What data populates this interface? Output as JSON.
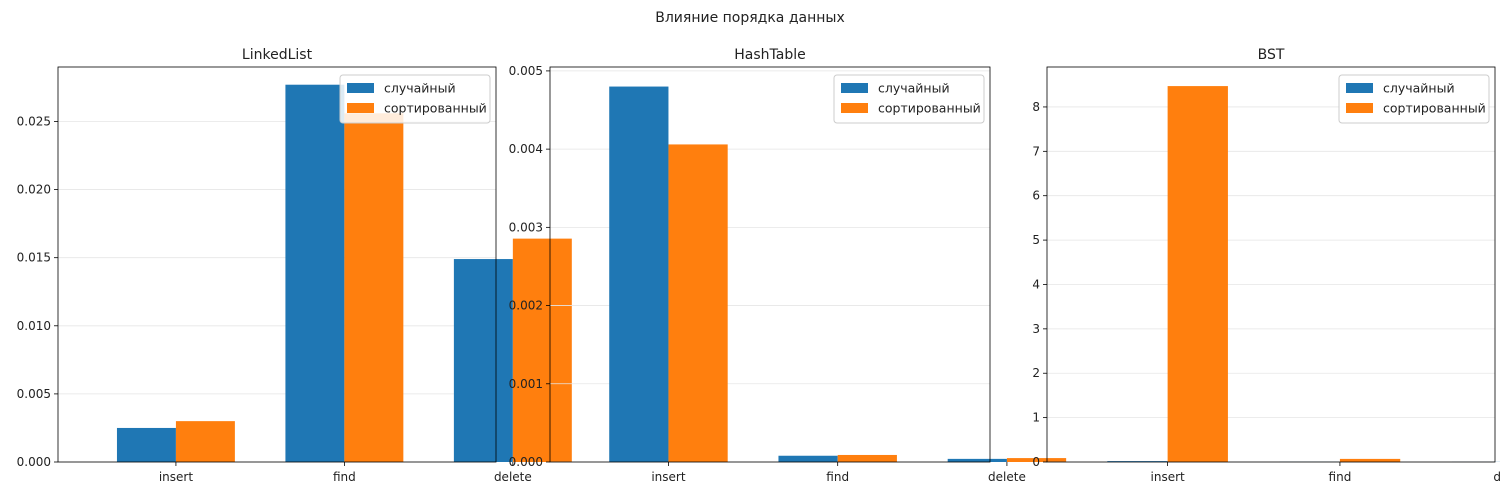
{
  "figure": {
    "title": "Влияние порядка данных"
  },
  "colors": {
    "random": "#1f77b4",
    "sorted": "#ff7f0e",
    "grid": "#e6e6e6",
    "axis": "#000000"
  },
  "chart_data": [
    {
      "type": "bar",
      "title": "LinkedList",
      "categories": [
        "insert",
        "find",
        "delete"
      ],
      "series": [
        {
          "name": "случайный",
          "values": [
            0.0025,
            0.0277,
            0.0149
          ]
        },
        {
          "name": "сортированный",
          "values": [
            0.003,
            0.0256,
            0.0164
          ]
        }
      ],
      "ylim": [
        0,
        0.029
      ],
      "yticks": [
        0.0,
        0.005,
        0.01,
        0.015,
        0.02,
        0.025
      ],
      "ytick_labels": [
        "0.000",
        "0.005",
        "0.010",
        "0.015",
        "0.020",
        "0.025"
      ],
      "grid": true,
      "legend": "top-right"
    },
    {
      "type": "bar",
      "title": "HashTable",
      "categories": [
        "insert",
        "find",
        "delete"
      ],
      "series": [
        {
          "name": "случайный",
          "values": [
            0.0048,
            8e-05,
            4e-05
          ]
        },
        {
          "name": "сортированный",
          "values": [
            0.00406,
            9e-05,
            5e-05
          ]
        }
      ],
      "ylim": [
        0,
        0.00505
      ],
      "yticks": [
        0.0,
        0.001,
        0.002,
        0.003,
        0.004,
        0.005
      ],
      "ytick_labels": [
        "0.000",
        "0.001",
        "0.002",
        "0.003",
        "0.004",
        "0.005"
      ],
      "grid": true,
      "legend": "top-right"
    },
    {
      "type": "bar",
      "title": "BST",
      "categories": [
        "insert",
        "find",
        "delete"
      ],
      "series": [
        {
          "name": "случайный",
          "values": [
            0.02,
            0.005,
            0.003
          ]
        },
        {
          "name": "сортированный",
          "values": [
            8.47,
            0.07,
            0.03
          ]
        }
      ],
      "ylim": [
        0,
        8.9
      ],
      "yticks": [
        0,
        1,
        2,
        3,
        4,
        5,
        6,
        7,
        8
      ],
      "ytick_labels": [
        "0",
        "1",
        "2",
        "3",
        "4",
        "5",
        "6",
        "7",
        "8"
      ],
      "grid": true,
      "legend": "top-right"
    }
  ]
}
